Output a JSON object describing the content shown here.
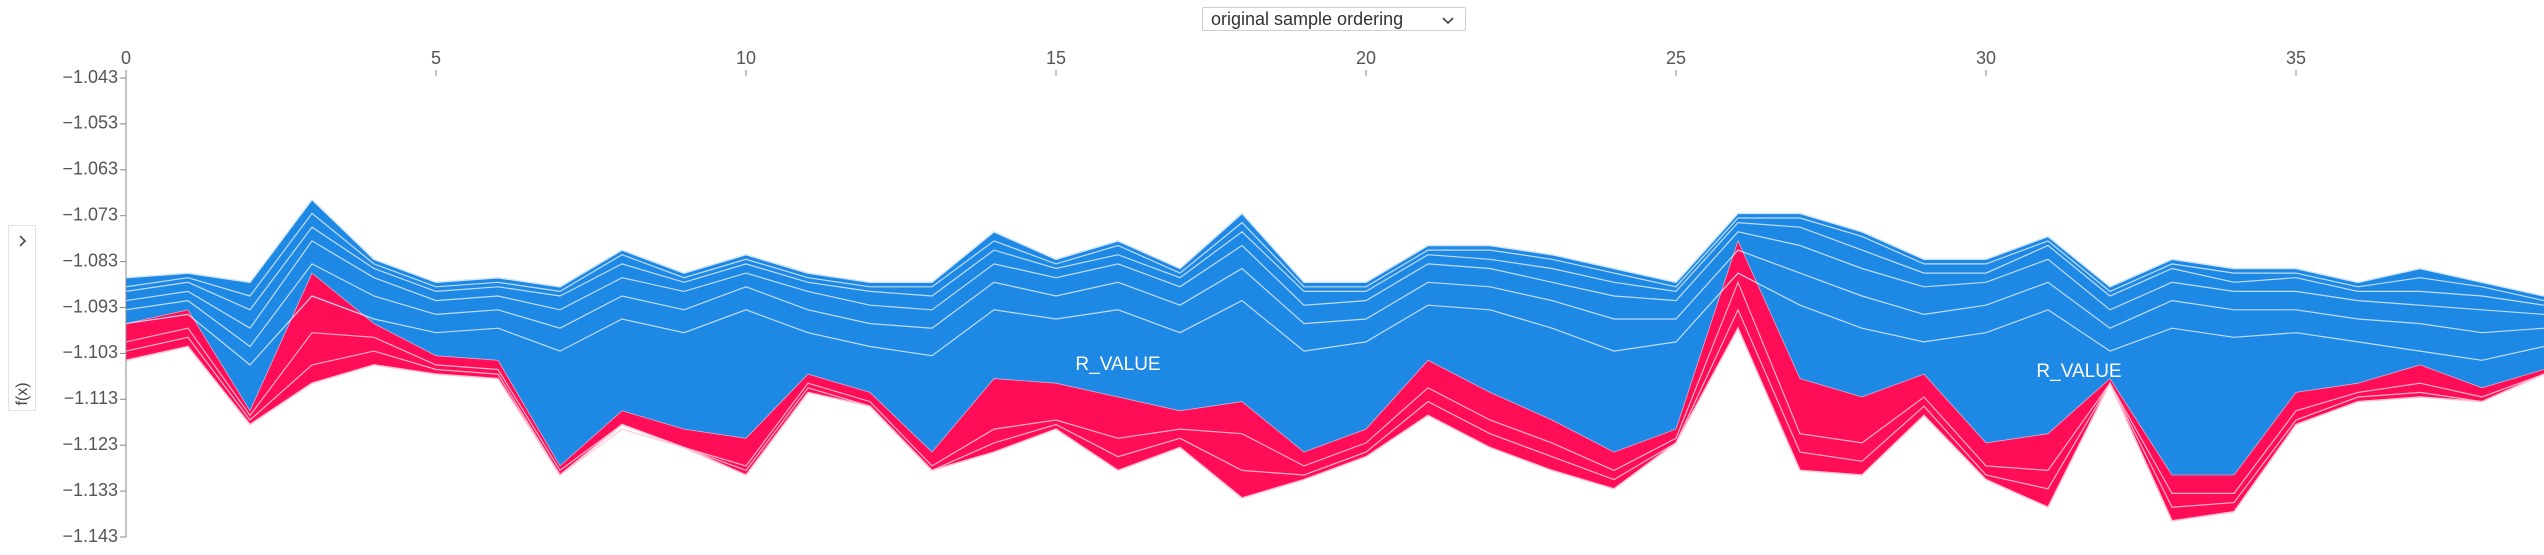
{
  "controls": {
    "ordering_value": "original sample ordering",
    "ordering_options": [
      "original sample ordering"
    ]
  },
  "side_panel": {
    "ylabel": "f(x)",
    "toggle_icon": "chevron-right-icon"
  },
  "colors": {
    "positive": "#ff0d57",
    "negative": "#1e88e5",
    "positive_line": "#ffc3d5",
    "negative_line": "#d1e6fa",
    "axis": "#888888"
  },
  "chart_data": {
    "type": "area",
    "title": "",
    "xlabel": "",
    "ylabel": "f(x)",
    "xlim": [
      0,
      39
    ],
    "ylim": [
      -1.143,
      -1.043
    ],
    "x_ticks": [
      0,
      5,
      10,
      15,
      20,
      25,
      30,
      35
    ],
    "x_tick_labels": [
      "0",
      "5",
      "10",
      "15",
      "20",
      "25",
      "30",
      "35"
    ],
    "y_ticks": [
      -1.043,
      -1.053,
      -1.063,
      -1.073,
      -1.083,
      -1.093,
      -1.103,
      -1.113,
      -1.123,
      -1.133,
      -1.143
    ],
    "y_tick_labels": [
      "−1.043",
      "−1.053",
      "−1.063",
      "−1.073",
      "−1.083",
      "−1.093",
      "−1.103",
      "−1.113",
      "−1.123",
      "−1.133",
      "−1.143"
    ],
    "x": [
      0,
      1,
      2,
      3,
      4,
      5,
      6,
      7,
      8,
      9,
      10,
      11,
      12,
      13,
      14,
      15,
      16,
      17,
      18,
      19,
      20,
      21,
      22,
      23,
      24,
      25,
      26,
      27,
      28,
      29,
      30,
      31,
      32,
      33,
      34,
      35,
      36,
      37,
      38,
      39
    ],
    "f_x": [
      -1.0965,
      -1.0935,
      -1.1155,
      -1.0855,
      -1.0965,
      -1.1035,
      -1.1045,
      -1.1275,
      -1.1155,
      -1.1195,
      -1.1215,
      -1.1075,
      -1.1115,
      -1.1245,
      -1.1085,
      -1.1095,
      -1.1125,
      -1.1155,
      -1.1135,
      -1.1245,
      -1.1195,
      -1.1045,
      -1.1115,
      -1.1175,
      -1.1245,
      -1.1195,
      -1.0785,
      -1.1085,
      -1.1125,
      -1.1075,
      -1.1225,
      -1.1205,
      -1.1085,
      -1.1295,
      -1.1295,
      -1.1115,
      -1.1095,
      -1.1055,
      -1.1105,
      -1.1065
    ],
    "upper": [
      -1.0865,
      -1.0855,
      -1.0875,
      -1.0695,
      -1.0825,
      -1.0875,
      -1.0865,
      -1.0885,
      -1.0805,
      -1.0855,
      -1.0815,
      -1.0855,
      -1.0875,
      -1.0875,
      -1.0765,
      -1.0825,
      -1.0785,
      -1.0845,
      -1.0725,
      -1.0875,
      -1.0875,
      -1.0795,
      -1.0795,
      -1.0815,
      -1.0845,
      -1.0875,
      -1.0725,
      -1.0725,
      -1.0765,
      -1.0825,
      -1.0825,
      -1.0775,
      -1.0885,
      -1.0825,
      -1.0845,
      -1.0845,
      -1.0875,
      -1.0845,
      -1.0875,
      -1.0905
    ],
    "lower": [
      -1.1045,
      -1.1015,
      -1.1185,
      -1.1095,
      -1.1055,
      -1.1075,
      -1.1085,
      -1.1295,
      -1.1185,
      -1.1235,
      -1.1295,
      -1.1115,
      -1.1145,
      -1.1285,
      -1.1245,
      -1.1195,
      -1.1285,
      -1.1235,
      -1.1345,
      -1.1305,
      -1.1255,
      -1.1165,
      -1.1235,
      -1.1285,
      -1.1325,
      -1.1225,
      -1.0975,
      -1.1285,
      -1.1295,
      -1.1165,
      -1.1305,
      -1.1365,
      -1.1095,
      -1.1395,
      -1.1375,
      -1.1185,
      -1.1135,
      -1.1125,
      -1.1135,
      -1.1075
    ],
    "positive_feature_boundaries": [
      [
        -1.1005,
        -1.0975,
        -1.1165,
        -1.0985,
        -1.0995,
        -1.1055,
        -1.1065,
        -1.1285,
        -1.1185,
        -1.1235,
        -1.1275,
        -1.1095,
        -1.1135,
        -1.1275,
        -1.1195,
        -1.1175,
        -1.1215,
        -1.1195,
        -1.1205,
        -1.1275,
        -1.1225,
        -1.1105,
        -1.1175,
        -1.1225,
        -1.1285,
        -1.1215,
        -1.0875,
        -1.1205,
        -1.1225,
        -1.1125,
        -1.1275,
        -1.1285,
        -1.1095,
        -1.1335,
        -1.1335,
        -1.1155,
        -1.1115,
        -1.1095,
        -1.1125,
        -1.1075
      ],
      [
        -1.1025,
        -1.0995,
        -1.1175,
        -1.1055,
        -1.1025,
        -1.1065,
        -1.1075,
        -1.1295,
        -1.1195,
        -1.1235,
        -1.1285,
        -1.1105,
        -1.1145,
        -1.1285,
        -1.1225,
        -1.1185,
        -1.1255,
        -1.1215,
        -1.1285,
        -1.1295,
        -1.1245,
        -1.1135,
        -1.1205,
        -1.1255,
        -1.1305,
        -1.1225,
        -1.0935,
        -1.1245,
        -1.1265,
        -1.1145,
        -1.1295,
        -1.1325,
        -1.1095,
        -1.1365,
        -1.1355,
        -1.1175,
        -1.1125,
        -1.1115,
        -1.1135,
        -1.1075
      ]
    ],
    "negative_feature_boundaries": [
      [
        -1.0885,
        -1.0865,
        -1.0905,
        -1.0725,
        -1.0835,
        -1.0885,
        -1.0875,
        -1.0895,
        -1.0815,
        -1.0865,
        -1.0825,
        -1.0865,
        -1.0885,
        -1.0885,
        -1.0785,
        -1.0835,
        -1.0795,
        -1.0855,
        -1.0745,
        -1.0885,
        -1.0885,
        -1.0805,
        -1.0805,
        -1.0825,
        -1.0855,
        -1.0885,
        -1.0735,
        -1.0735,
        -1.0775,
        -1.0835,
        -1.0835,
        -1.0785,
        -1.0895,
        -1.0835,
        -1.0855,
        -1.0855,
        -1.0885,
        -1.0865,
        -1.0885,
        -1.0915
      ],
      [
        -1.0895,
        -1.0875,
        -1.0935,
        -1.0755,
        -1.0845,
        -1.0895,
        -1.0885,
        -1.0905,
        -1.0835,
        -1.0875,
        -1.0835,
        -1.0875,
        -1.0895,
        -1.0905,
        -1.0805,
        -1.0845,
        -1.0815,
        -1.0865,
        -1.0765,
        -1.0895,
        -1.0895,
        -1.0815,
        -1.0825,
        -1.0845,
        -1.0875,
        -1.0895,
        -1.0745,
        -1.0755,
        -1.0805,
        -1.0855,
        -1.0855,
        -1.0795,
        -1.0905,
        -1.0845,
        -1.0875,
        -1.0865,
        -1.0895,
        -1.0895,
        -1.0905,
        -1.0925
      ],
      [
        -1.0915,
        -1.0895,
        -1.0975,
        -1.0785,
        -1.0865,
        -1.0915,
        -1.0905,
        -1.0935,
        -1.0865,
        -1.0895,
        -1.0855,
        -1.0895,
        -1.0925,
        -1.0935,
        -1.0835,
        -1.0865,
        -1.0835,
        -1.0885,
        -1.0795,
        -1.0925,
        -1.0915,
        -1.0835,
        -1.0845,
        -1.0875,
        -1.0905,
        -1.0915,
        -1.0765,
        -1.0795,
        -1.0845,
        -1.0885,
        -1.0875,
        -1.0825,
        -1.0935,
        -1.0875,
        -1.0895,
        -1.0895,
        -1.0915,
        -1.0925,
        -1.0935,
        -1.0945
      ],
      [
        -1.0935,
        -1.0915,
        -1.1015,
        -1.0835,
        -1.0905,
        -1.0945,
        -1.0935,
        -1.0975,
        -1.0905,
        -1.0935,
        -1.0885,
        -1.0935,
        -1.0965,
        -1.0975,
        -1.0875,
        -1.0905,
        -1.0875,
        -1.0925,
        -1.0845,
        -1.0965,
        -1.0955,
        -1.0875,
        -1.0885,
        -1.0915,
        -1.0955,
        -1.0955,
        -1.0805,
        -1.0855,
        -1.0905,
        -1.0945,
        -1.0925,
        -1.0875,
        -1.0975,
        -1.0915,
        -1.0935,
        -1.0935,
        -1.0955,
        -1.0965,
        -1.0985,
        -1.0975
      ],
      [
        -1.0965,
        -1.0945,
        -1.1055,
        -1.0905,
        -1.0955,
        -1.0985,
        -1.0975,
        -1.1025,
        -1.0955,
        -1.0985,
        -1.0935,
        -1.0985,
        -1.1015,
        -1.1035,
        -1.0935,
        -1.0955,
        -1.0935,
        -1.0985,
        -1.0915,
        -1.1025,
        -1.1005,
        -1.0925,
        -1.0935,
        -1.0975,
        -1.1025,
        -1.1005,
        -1.0855,
        -1.0925,
        -1.0975,
        -1.1005,
        -1.0985,
        -1.0935,
        -1.1025,
        -1.0975,
        -1.0995,
        -1.0985,
        -1.1005,
        -1.1025,
        -1.1045,
        -1.1015
      ]
    ],
    "feature_labels": [
      {
        "x": 16,
        "y": -1.1055,
        "text": "R_VALUE"
      },
      {
        "x": 31.5,
        "y": -1.107,
        "text": "R_VALUE"
      }
    ]
  }
}
